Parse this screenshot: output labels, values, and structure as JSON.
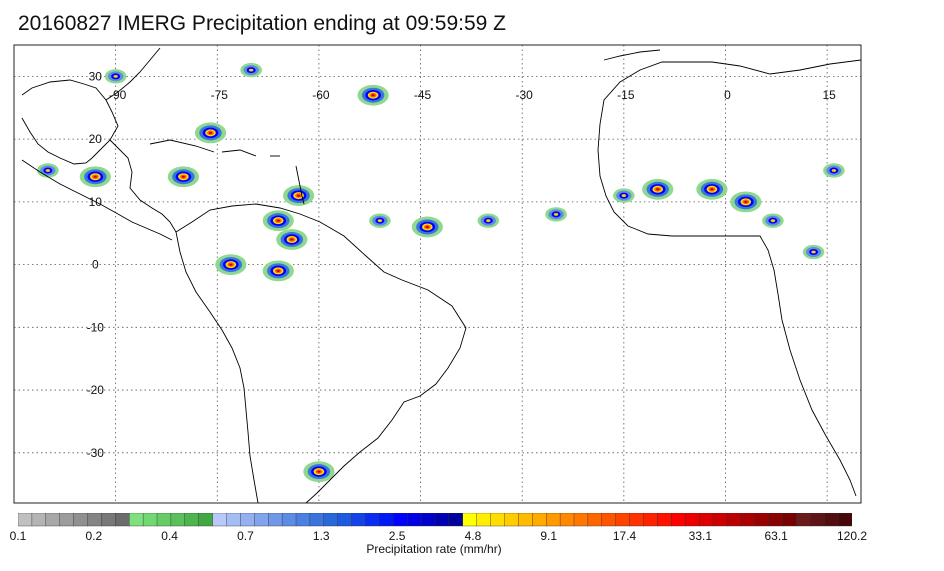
{
  "title": "20160827 IMERG Precipitation ending at 09:59:59 Z",
  "map": {
    "lon_range": [
      -105,
      20
    ],
    "lat_range": [
      -38,
      35
    ],
    "lon_ticks": [
      -90,
      -75,
      -60,
      -45,
      -30,
      -15,
      0,
      15
    ],
    "lat_ticks": [
      30,
      20,
      10,
      0,
      -10,
      -20,
      -30
    ],
    "grid": true,
    "grid_style": "dotted",
    "coastline_color": "#000000"
  },
  "precip_cells": [
    {
      "lon": -80,
      "lat": 14,
      "intensity": "high"
    },
    {
      "lon": -76,
      "lat": 21,
      "intensity": "high"
    },
    {
      "lon": -70,
      "lat": 31,
      "intensity": "medium"
    },
    {
      "lon": -52,
      "lat": 27,
      "intensity": "high"
    },
    {
      "lon": -93,
      "lat": 14,
      "intensity": "high"
    },
    {
      "lon": -100,
      "lat": 15,
      "intensity": "medium"
    },
    {
      "lon": -63,
      "lat": 11,
      "intensity": "high"
    },
    {
      "lon": -66,
      "lat": 7,
      "intensity": "high"
    },
    {
      "lon": -64,
      "lat": 4,
      "intensity": "high"
    },
    {
      "lon": -73,
      "lat": 0,
      "intensity": "high"
    },
    {
      "lon": -66,
      "lat": -1,
      "intensity": "high"
    },
    {
      "lon": -44,
      "lat": 6,
      "intensity": "high"
    },
    {
      "lon": -51,
      "lat": 7,
      "intensity": "medium"
    },
    {
      "lon": -35,
      "lat": 7,
      "intensity": "medium"
    },
    {
      "lon": -25,
      "lat": 8,
      "intensity": "medium"
    },
    {
      "lon": -15,
      "lat": 11,
      "intensity": "medium"
    },
    {
      "lon": -10,
      "lat": 12,
      "intensity": "high"
    },
    {
      "lon": -2,
      "lat": 12,
      "intensity": "high"
    },
    {
      "lon": 3,
      "lat": 10,
      "intensity": "high"
    },
    {
      "lon": 7,
      "lat": 7,
      "intensity": "medium"
    },
    {
      "lon": 13,
      "lat": 2,
      "intensity": "medium"
    },
    {
      "lon": 16,
      "lat": 15,
      "intensity": "medium"
    },
    {
      "lon": -60,
      "lat": -33,
      "intensity": "high"
    },
    {
      "lon": -90,
      "lat": 30,
      "intensity": "medium"
    }
  ],
  "colorbar": {
    "colors": [
      "#c0c0c0",
      "#b4b4b4",
      "#a8a8a8",
      "#9c9c9c",
      "#909090",
      "#848484",
      "#787878",
      "#6c6c6c",
      "#7fe07f",
      "#72d872",
      "#66cc66",
      "#5ac05a",
      "#4eb44e",
      "#42a842",
      "#b8c8f8",
      "#a6bcf4",
      "#94b0f0",
      "#82a4ec",
      "#7098e8",
      "#5e8ce4",
      "#4c80e0",
      "#3a74dc",
      "#2868d8",
      "#1e5ae0",
      "#1444e8",
      "#0a2ef0",
      "#0018f8",
      "#0000ff",
      "#0000e6",
      "#0000cc",
      "#0000b3",
      "#00009a",
      "#ffff00",
      "#ffee00",
      "#ffdd00",
      "#ffcc00",
      "#ffbb00",
      "#ffaa00",
      "#ff9900",
      "#ff8800",
      "#ff7700",
      "#ff6600",
      "#ff5500",
      "#ff4400",
      "#ff3300",
      "#ff2200",
      "#ff1100",
      "#ff0000",
      "#ee0000",
      "#dd0000",
      "#cc0000",
      "#bb0000",
      "#aa0000",
      "#990000",
      "#880000",
      "#770000",
      "#6a1a1a",
      "#5e1414",
      "#520e0e",
      "#460808"
    ],
    "labels": [
      "0.1",
      "0.2",
      "0.4",
      "0.7",
      "1.3",
      "2.5",
      "4.8",
      "9.1",
      "17.4",
      "33.1",
      "63.1",
      "120.2"
    ],
    "title": "Precipitation rate (mm/hr)"
  }
}
